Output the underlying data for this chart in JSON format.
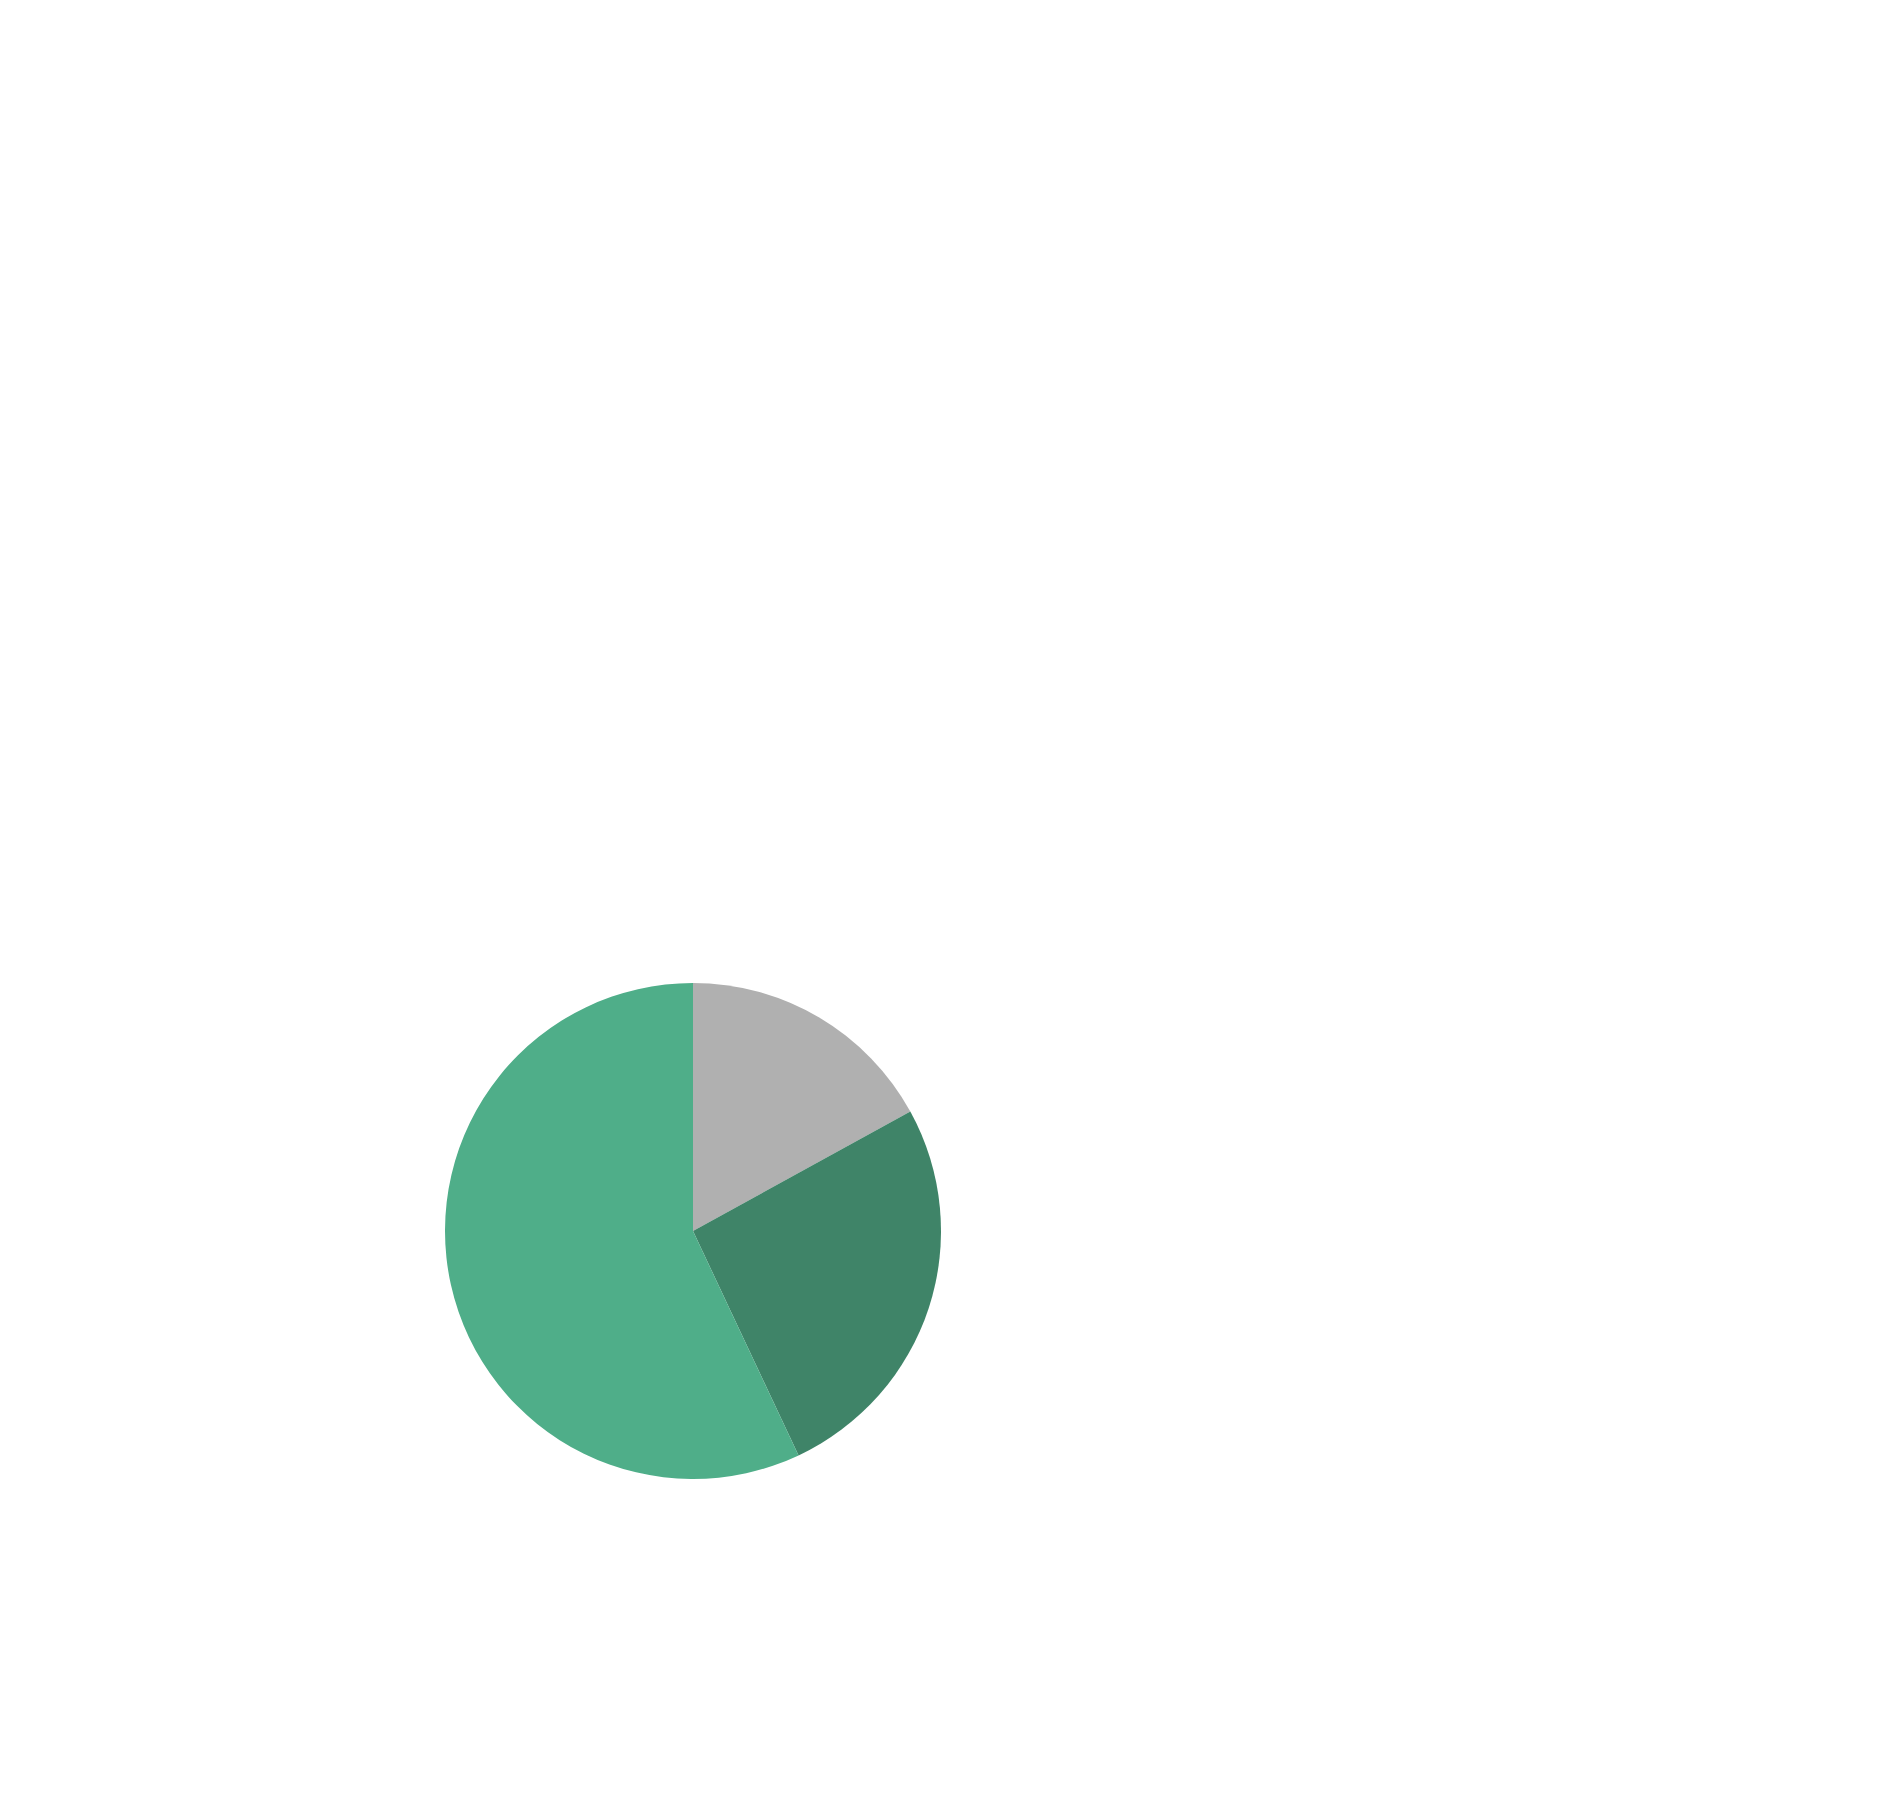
{
  "chart_data": {
    "type": "pie",
    "categories": [
      null,
      null,
      null
    ],
    "values": [
      17,
      26,
      57
    ],
    "colors": [
      "#b0b0b0",
      "#3f8468",
      "#4fae89"
    ]
  }
}
